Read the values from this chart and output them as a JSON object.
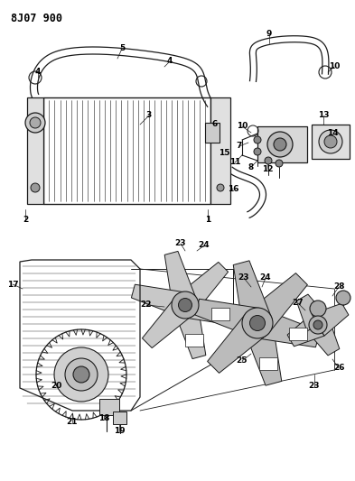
{
  "title": "8J07 900",
  "bg_color": "#ffffff",
  "line_color": "#1a1a1a",
  "fig_width": 3.93,
  "fig_height": 5.33,
  "dpi": 100,
  "title_fontsize": 8.5,
  "title_fontweight": "bold"
}
